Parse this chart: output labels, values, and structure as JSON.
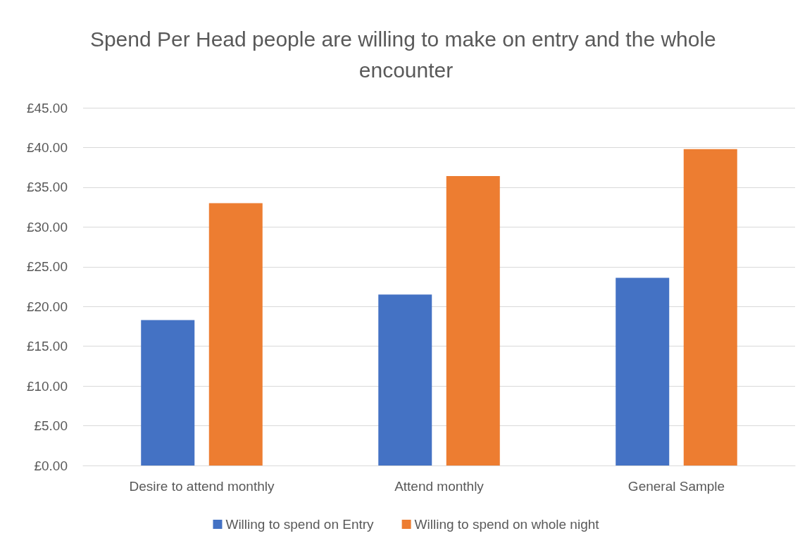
{
  "chart_data": {
    "type": "bar",
    "title": "Spend Per Head people are willing to make on entry and the whole encounter",
    "categories": [
      "Desire to attend monthly",
      "Attend monthly",
      "General Sample"
    ],
    "series": [
      {
        "name": "Willing to spend on Entry",
        "color": "#4472c4",
        "values": [
          18.3,
          21.5,
          23.6
        ]
      },
      {
        "name": "Willing to spend on whole night",
        "color": "#ed7d31",
        "values": [
          33.0,
          36.4,
          39.8
        ]
      }
    ],
    "ylim": [
      0,
      45
    ],
    "yticks": [
      {
        "value": 0,
        "label": "£0.00"
      },
      {
        "value": 5,
        "label": "£5.00"
      },
      {
        "value": 10,
        "label": "£10.00"
      },
      {
        "value": 15,
        "label": "£15.00"
      },
      {
        "value": 20,
        "label": "£20.00"
      },
      {
        "value": 25,
        "label": "£25.00"
      },
      {
        "value": 30,
        "label": "£30.00"
      },
      {
        "value": 35,
        "label": "£35.00"
      },
      {
        "value": 40,
        "label": "£40.00"
      },
      {
        "value": 45,
        "label": "£45.00"
      }
    ],
    "grid": "y",
    "legend": "bottom"
  }
}
